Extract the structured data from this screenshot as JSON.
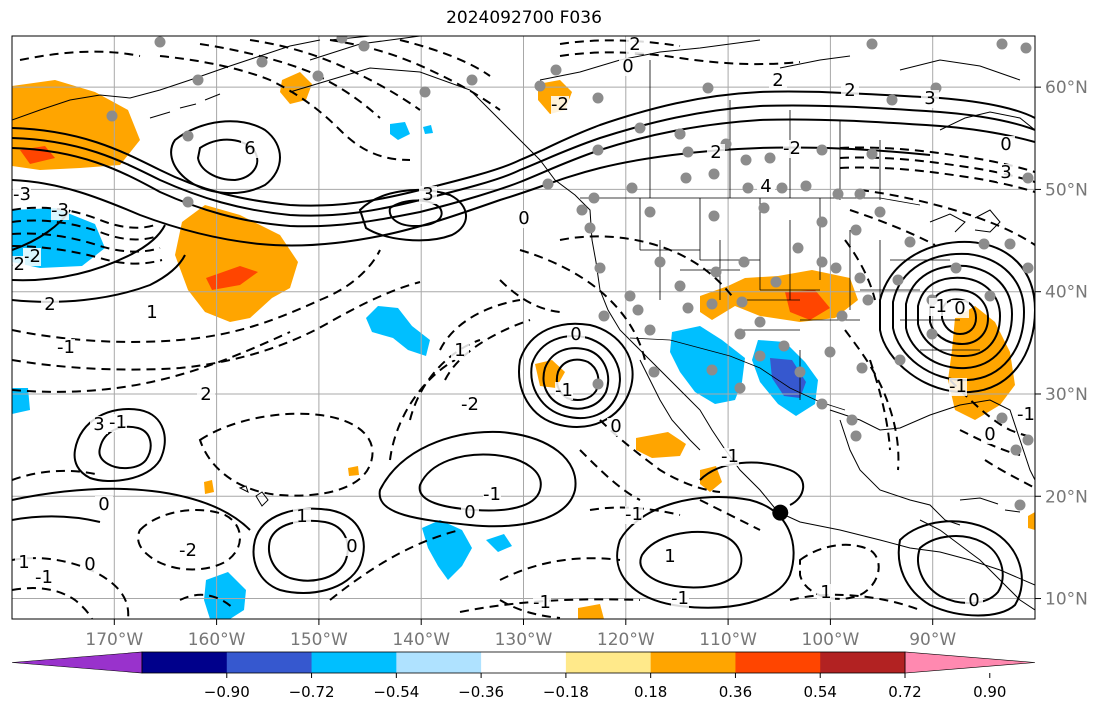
{
  "title": "2024092700 F036",
  "map": {
    "projection": "equirectangular",
    "lon_range": [
      180,
      280
    ],
    "lat_range": [
      8,
      65
    ],
    "lon_ticks": [
      "170°W",
      "160°W",
      "150°W",
      "140°W",
      "130°W",
      "120°W",
      "110°W",
      "100°W",
      "90°W"
    ],
    "lat_ticks": [
      "60°N",
      "50°N",
      "40°N",
      "30°N",
      "20°N",
      "10°N"
    ],
    "gridlines": true,
    "coastline_color": "#000000",
    "station_marker_color": "#8c8c8c",
    "highlight_marker": {
      "name": "point-marker",
      "lon": 255.1,
      "lat": 18.4,
      "color": "#000000"
    },
    "contour_labels": [
      "2",
      "0",
      "2",
      "2",
      "3",
      "-3",
      "6",
      "3",
      "0",
      "4",
      "-2",
      "2",
      "-2",
      "0",
      "3",
      "-3",
      "-2",
      "-2",
      "1",
      "-1",
      "2",
      "0",
      "-1",
      "1",
      "-2",
      "2",
      "3",
      "-1",
      "-1",
      "0",
      "0",
      "1",
      "0",
      "-2",
      "1",
      "-1",
      "0",
      "-1",
      "-1",
      "1",
      "-1",
      "0",
      "-1",
      "-1",
      "1",
      "0",
      "0",
      "-1",
      "-1",
      "0"
    ]
  },
  "colorbar": {
    "colors": [
      "#9932cc",
      "#00008b",
      "#3658cf",
      "#00bfff",
      "#afe2ff",
      "#ffffff",
      "#ffe98a",
      "#ffa500",
      "#ff4500",
      "#b22222",
      "#ff89b0"
    ],
    "tick_labels": [
      "−0.90",
      "−0.72",
      "−0.54",
      "−0.36",
      "−0.18",
      "0.18",
      "0.36",
      "0.54",
      "0.72",
      "0.90"
    ],
    "extend": "both"
  }
}
